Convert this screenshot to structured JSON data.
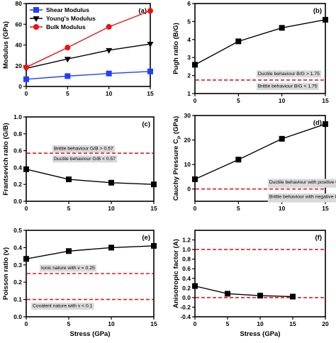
{
  "colors": {
    "shear": "#1f3fff",
    "youngs": "#000000",
    "bulk": "#ee1111",
    "ref": "#e41a1c",
    "annot_bg": "#d9d9d9",
    "axis": "#000000"
  },
  "x_axis_label": "Stress (GPa)",
  "chart_data": [
    {
      "type": "line",
      "panel_label": "(a)",
      "ylabel": "Modulus (GPa)",
      "x": [
        0,
        5,
        10,
        15
      ],
      "xlim": [
        0,
        15
      ],
      "xticks": [
        "0",
        "5",
        "10",
        "15"
      ],
      "ylim": [
        0,
        80
      ],
      "yticks": [
        "0",
        "20",
        "40",
        "60",
        "80"
      ],
      "series": [
        {
          "name": "Shear Modulus",
          "values": [
            7,
            10,
            12.5,
            14.5
          ],
          "marker": "square",
          "color": "#1f3fff"
        },
        {
          "name": "Young's Modulus",
          "values": [
            17.5,
            26.5,
            35,
            41
          ],
          "marker": "triangle-down",
          "color": "#000000"
        },
        {
          "name": "Bulk Modulus",
          "values": [
            18.5,
            37.5,
            57.5,
            73
          ],
          "marker": "circle",
          "color": "#ee1111"
        }
      ],
      "legend": "top-left",
      "grid": false
    },
    {
      "type": "line",
      "panel_label": "(b)",
      "ylabel": "Pugh ratio (B/G)",
      "x": [
        0,
        5,
        10,
        15
      ],
      "xlim": [
        0,
        15
      ],
      "xticks": [
        "0",
        "5",
        "10",
        "15"
      ],
      "ylim": [
        1,
        6
      ],
      "yticks": [
        "1",
        "2",
        "3",
        "4",
        "5",
        "6"
      ],
      "series": [
        {
          "values": [
            2.6,
            3.9,
            4.65,
            5.1
          ],
          "marker": "square",
          "color": "#000000"
        }
      ],
      "reference_lines": [
        1.75
      ],
      "annotations": [
        {
          "text": "Ductile behaviour B/G > 1.75",
          "x": 7,
          "y": 2.13
        },
        {
          "text": "Brittle behaviour B/G < 1.75",
          "x": 7,
          "y": 1.43
        }
      ],
      "grid": false
    },
    {
      "type": "line",
      "panel_label": "(c)",
      "ylabel": "Frantsevich ratio (G/B)",
      "x": [
        0,
        5,
        10,
        15
      ],
      "xlim": [
        0,
        15
      ],
      "xticks": [
        "0",
        "5",
        "10",
        "15"
      ],
      "ylim": [
        0,
        1.0
      ],
      "yticks": [
        "0.0",
        "0.2",
        "0.4",
        "0.6",
        "0.8",
        "1.0"
      ],
      "series": [
        {
          "values": [
            0.38,
            0.26,
            0.22,
            0.2
          ],
          "marker": "square",
          "color": "#000000"
        }
      ],
      "reference_lines": [
        0.57
      ],
      "annotations": [
        {
          "text": "Brittle behaviour G/B > 0.57",
          "x": 3,
          "y": 0.63
        },
        {
          "text": "Ductile behaviour G/B < 0.57",
          "x": 3,
          "y": 0.51
        }
      ],
      "grid": false
    },
    {
      "type": "line",
      "panel_label": "(d)",
      "ylabel": "Cauchy Pressure C",
      "ylabel_sub": "P",
      "ylabel_unit": " (GPa)",
      "x": [
        0,
        5,
        10,
        15
      ],
      "xlim": [
        0,
        15
      ],
      "xticks": [
        "0",
        "5",
        "10",
        "15"
      ],
      "ylim": [
        -5,
        30
      ],
      "yticks": [
        "0",
        "10",
        "20",
        "30"
      ],
      "series": [
        {
          "values": [
            4,
            12,
            20.5,
            26.5
          ],
          "marker": "square",
          "color": "#000000"
        }
      ],
      "reference_lines": [
        0
      ],
      "annotations": [
        {
          "text": "Ductile behaviour with positive C",
          "sub": "P",
          "x": 8.3,
          "y": 3
        },
        {
          "text": "Brittle behaviour with negative C",
          "sub": "P",
          "x": 8.3,
          "y": -3
        }
      ],
      "grid": false
    },
    {
      "type": "line",
      "panel_label": "(e)",
      "ylabel": "Poisson ratio (v)",
      "x": [
        0,
        5,
        10,
        15
      ],
      "xlim": [
        0,
        15
      ],
      "xticks": [
        "0",
        "5",
        "10",
        "15"
      ],
      "ylim": [
        0.0,
        0.5
      ],
      "yticks": [
        "0.0",
        "0.1",
        "0.2",
        "0.3",
        "0.4",
        "0.5"
      ],
      "series": [
        {
          "values": [
            0.335,
            0.38,
            0.4,
            0.41
          ],
          "marker": "square",
          "color": "#000000"
        }
      ],
      "reference_lines": [
        0.25,
        0.1
      ],
      "annotations": [
        {
          "text": "Ionic nature with v = 0.25",
          "x": 1.5,
          "y": 0.285
        },
        {
          "text": "Covalent nature with v < 0.1",
          "x": 0.5,
          "y": 0.065
        }
      ],
      "grid": false
    },
    {
      "type": "line",
      "panel_label": "(f)",
      "ylabel": "Anisotropic factor (A)",
      "x": [
        0,
        5,
        10,
        15
      ],
      "xlim": [
        0,
        20
      ],
      "xticks": [
        "0",
        "5",
        "10",
        "15",
        "20"
      ],
      "ylim": [
        -0.4,
        1.4
      ],
      "yticks": [
        "-0.4",
        "-0.2",
        "0.0",
        "0.2",
        "0.4",
        "0.6",
        "0.8",
        "1.0",
        "1.2"
      ],
      "series": [
        {
          "values": [
            0.24,
            0.08,
            0.04,
            0.02
          ],
          "marker": "square",
          "color": "#000000"
        }
      ],
      "reference_lines": [
        1.0,
        0.0
      ],
      "grid": false
    }
  ]
}
